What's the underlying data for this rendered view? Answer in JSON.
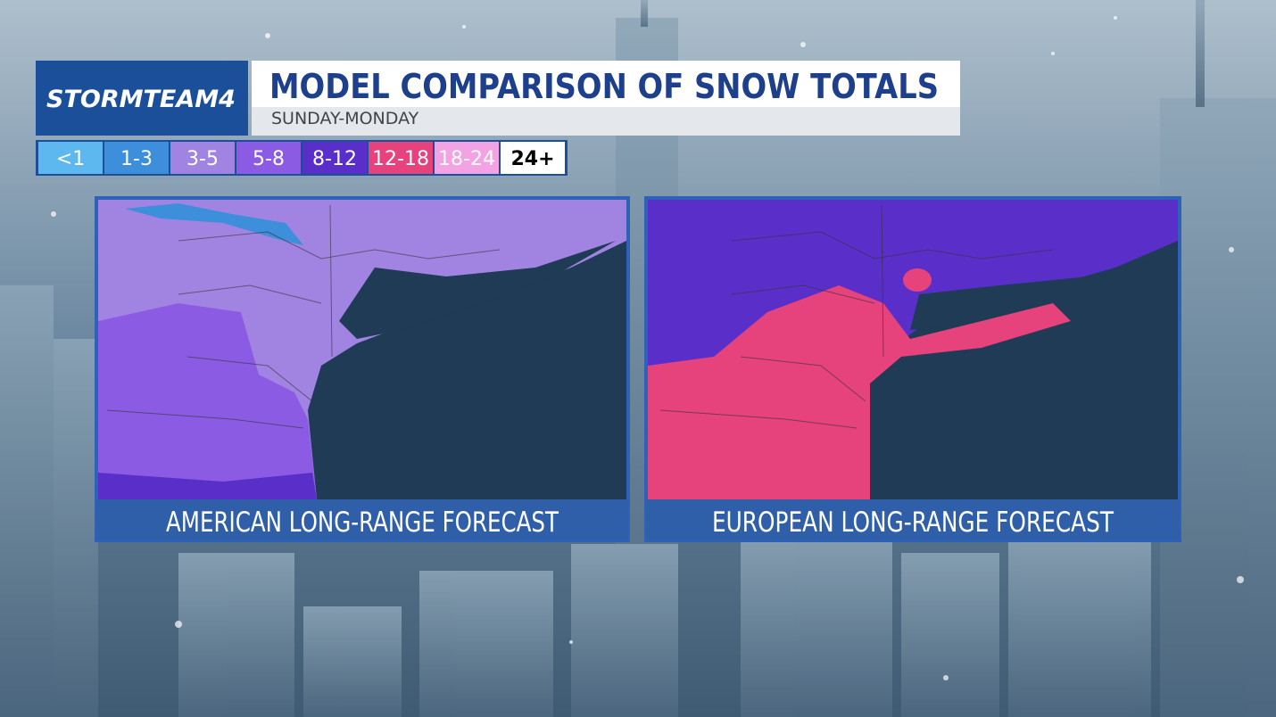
{
  "header": {
    "logo": "STORMTEAM4",
    "title": "MODEL COMPARISON OF SNOW TOTALS",
    "subtitle": "SUNDAY-MONDAY"
  },
  "legend": {
    "items": [
      {
        "label": "<1",
        "color": "#5cb8ee"
      },
      {
        "label": "1-3",
        "color": "#3d8edb"
      },
      {
        "label": "3-5",
        "color": "#a184e2"
      },
      {
        "label": "5-8",
        "color": "#8b5ce3"
      },
      {
        "label": "8-12",
        "color": "#5a2fc9"
      },
      {
        "label": "12-18",
        "color": "#e6427c"
      },
      {
        "label": "18-24",
        "color": "#f3a2e3"
      },
      {
        "label": "24+",
        "color": "#ffffff"
      }
    ]
  },
  "panels": [
    {
      "caption": "AMERICAN LONG-RANGE FORECAST"
    },
    {
      "caption": "EUROPEAN LONG-RANGE FORECAST"
    }
  ]
}
